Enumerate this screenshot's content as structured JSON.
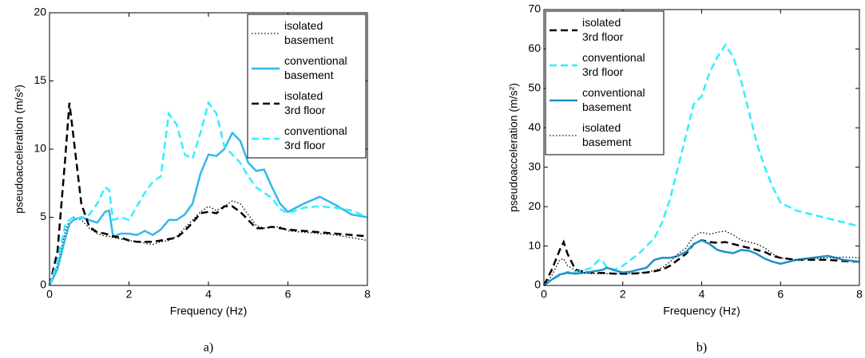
{
  "chart_data": [
    {
      "type": "line",
      "xlabel": "Frequency (Hz)",
      "ylabel": "pseudoacceleration (m/s²)",
      "caption": "a)",
      "xlim": [
        0,
        8
      ],
      "xticks": [
        0,
        2,
        4,
        6,
        8
      ],
      "ylim": [
        0,
        20
      ],
      "yticks": [
        0,
        5,
        10,
        15,
        20
      ],
      "grid": false,
      "legend": "upper right",
      "x": [
        0,
        0.2,
        0.4,
        0.5,
        0.6,
        0.8,
        1.0,
        1.2,
        1.4,
        1.5,
        1.6,
        1.8,
        2.0,
        2.2,
        2.4,
        2.6,
        2.8,
        3.0,
        3.2,
        3.4,
        3.6,
        3.8,
        4.0,
        4.2,
        4.4,
        4.6,
        4.8,
        5.0,
        5.2,
        5.4,
        5.6,
        5.8,
        6.0,
        6.4,
        6.8,
        7.2,
        7.6,
        8.0
      ],
      "series": [
        {
          "name": "isolated basement",
          "color": "#000000",
          "linestyle": "dotted",
          "values": [
            0,
            1.5,
            4.0,
            4.8,
            5.0,
            4.8,
            4.2,
            3.8,
            3.6,
            3.6,
            3.5,
            3.4,
            3.3,
            3.2,
            3.1,
            3.0,
            3.2,
            3.3,
            3.6,
            4.2,
            4.8,
            5.4,
            5.8,
            5.5,
            5.8,
            6.2,
            6.0,
            5.2,
            4.4,
            4.2,
            4.3,
            4.3,
            4.0,
            3.9,
            3.8,
            3.7,
            3.5,
            3.3
          ]
        },
        {
          "name": "conventional basement",
          "color": "#33b8ea",
          "linestyle": "solid",
          "values": [
            0,
            1.2,
            3.5,
            4.5,
            4.8,
            5.0,
            4.8,
            4.6,
            5.4,
            5.5,
            3.6,
            3.8,
            3.8,
            3.7,
            4.0,
            3.7,
            4.1,
            4.8,
            4.8,
            5.2,
            6.0,
            8.2,
            9.6,
            9.5,
            10.0,
            11.2,
            10.6,
            9.0,
            8.4,
            8.5,
            7.2,
            6.0,
            5.4,
            6.0,
            6.5,
            5.9,
            5.2,
            5.0
          ]
        },
        {
          "name": "isolated 3rd floor",
          "color": "#000000",
          "linestyle": "dashed",
          "values": [
            0,
            2.5,
            9.5,
            13.4,
            11.0,
            6.0,
            4.3,
            3.9,
            3.8,
            3.7,
            3.6,
            3.5,
            3.3,
            3.2,
            3.2,
            3.2,
            3.3,
            3.4,
            3.5,
            4.0,
            4.6,
            5.3,
            5.4,
            5.3,
            5.8,
            5.8,
            5.4,
            4.8,
            4.2,
            4.2,
            4.3,
            4.2,
            4.1,
            4.0,
            3.9,
            3.8,
            3.7,
            3.6
          ]
        },
        {
          "name": "conventional 3rd floor",
          "color": "#33eeff",
          "linestyle": "dashed",
          "values": [
            0,
            1.8,
            4.5,
            4.8,
            5.0,
            4.9,
            5.2,
            6.0,
            7.2,
            7.0,
            4.8,
            5.0,
            4.8,
            5.8,
            6.8,
            7.6,
            8.0,
            12.6,
            11.8,
            9.6,
            9.3,
            11.2,
            13.4,
            12.6,
            10.2,
            9.6,
            9.0,
            8.0,
            7.2,
            6.8,
            6.4,
            5.6,
            5.3,
            5.7,
            5.8,
            5.7,
            5.5,
            5.0
          ]
        }
      ]
    },
    {
      "type": "line",
      "xlabel": "Frequency (Hz)",
      "ylabel": "pseudoacceleration (m/s²)",
      "caption": "b)",
      "xlim": [
        0,
        8
      ],
      "xticks": [
        0,
        2,
        4,
        6,
        8
      ],
      "ylim": [
        0,
        70
      ],
      "yticks": [
        0,
        10,
        20,
        30,
        40,
        50,
        60,
        70
      ],
      "grid": false,
      "legend": "upper left",
      "x": [
        0,
        0.2,
        0.4,
        0.5,
        0.6,
        0.8,
        1.0,
        1.2,
        1.4,
        1.5,
        1.6,
        1.8,
        2.0,
        2.2,
        2.4,
        2.6,
        2.8,
        3.0,
        3.2,
        3.4,
        3.6,
        3.8,
        4.0,
        4.2,
        4.4,
        4.6,
        4.8,
        5.0,
        5.2,
        5.4,
        5.6,
        5.8,
        6.0,
        6.4,
        6.8,
        7.2,
        7.6,
        8.0
      ],
      "series": [
        {
          "name": "isolated 3rd floor",
          "color": "#000000",
          "linestyle": "dashed",
          "values": [
            0,
            4,
            9,
            11,
            8,
            4,
            3.5,
            3.3,
            3.2,
            3.2,
            3.1,
            3.0,
            3.0,
            3.0,
            3.1,
            3.3,
            3.6,
            4.0,
            5.0,
            6.5,
            8.0,
            10.5,
            11.5,
            11.0,
            10.8,
            11.0,
            10.5,
            10.0,
            9.5,
            9.0,
            8.5,
            7.5,
            7.0,
            6.5,
            6.5,
            6.5,
            6.2,
            6.0
          ]
        },
        {
          "name": "conventional 3rd floor",
          "color": "#33eeff",
          "linestyle": "dashed",
          "values": [
            0,
            1.5,
            2.5,
            3,
            3.5,
            3.5,
            3.8,
            4.5,
            6.5,
            6.0,
            4.5,
            4.0,
            5.0,
            6.5,
            8.0,
            10.0,
            12.0,
            16,
            22,
            30,
            38,
            46,
            48,
            54,
            58,
            61,
            58,
            52,
            44,
            36,
            30,
            25,
            21,
            19,
            18,
            17,
            16,
            15
          ]
        },
        {
          "name": "conventional basement",
          "color": "#1f90c8",
          "linestyle": "solid",
          "values": [
            0,
            1.5,
            2.8,
            3,
            3.2,
            3.0,
            3.2,
            3.5,
            3.8,
            4.0,
            4.5,
            3.8,
            3.3,
            3.5,
            4.0,
            4.5,
            6.5,
            7.0,
            7.0,
            7.5,
            8.5,
            10.5,
            11.5,
            10.5,
            9.0,
            8.5,
            8.2,
            9.0,
            8.8,
            8.0,
            6.8,
            6.0,
            5.5,
            6.5,
            7.0,
            7.5,
            6.5,
            6.0
          ]
        },
        {
          "name": "isolated basement",
          "color": "#000000",
          "linestyle": "dotted",
          "values": [
            0,
            2.5,
            6.5,
            6.8,
            5.0,
            3.8,
            3.2,
            3.0,
            3.0,
            3.0,
            3.0,
            3.0,
            3.0,
            3.1,
            3.2,
            3.4,
            3.8,
            4.5,
            6.0,
            8.0,
            9.5,
            12.5,
            13.5,
            13.0,
            13.5,
            13.8,
            12.8,
            11.5,
            11.0,
            10.5,
            9.5,
            8.0,
            7.0,
            6.5,
            6.8,
            7.0,
            7.2,
            7.0
          ]
        }
      ]
    }
  ]
}
